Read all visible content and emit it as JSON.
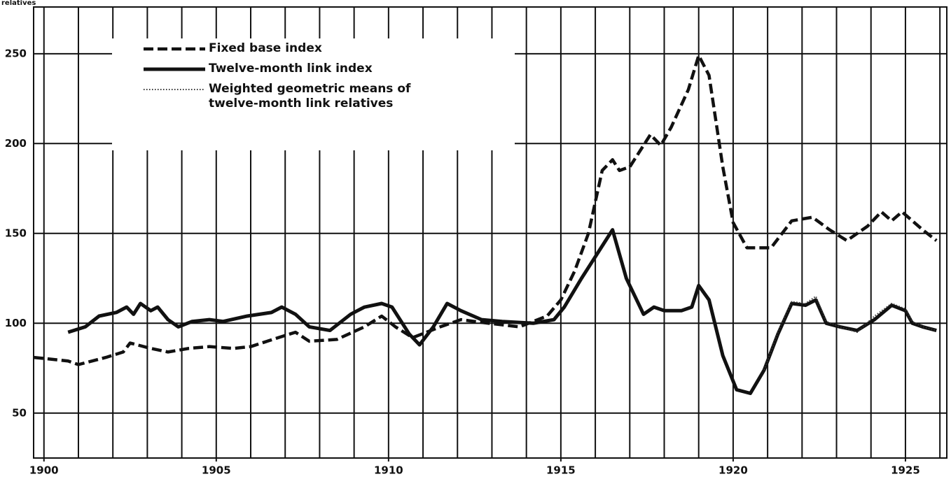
{
  "chart_data": {
    "type": "line",
    "y_label": "relatives",
    "xlim": [
      1899.7,
      1926.2
    ],
    "ylim": [
      25,
      276
    ],
    "xticks": [
      1900,
      1905,
      1910,
      1915,
      1920,
      1925
    ],
    "yticks": [
      50,
      100,
      150,
      200,
      250
    ],
    "x_grid_step": 1,
    "grid": true,
    "legend": "upper left",
    "series": [
      {
        "name": "Fixed base index",
        "color": "#111111",
        "style": "dashed",
        "x": [
          1899.7,
          1900.7,
          1901.0,
          1901.8,
          1902.3,
          1902.5,
          1903.1,
          1903.6,
          1904.2,
          1904.8,
          1905.5,
          1906.0,
          1906.8,
          1907.3,
          1907.7,
          1908.5,
          1909.3,
          1909.8,
          1910.2,
          1910.7,
          1911.5,
          1912.1,
          1912.9,
          1913.8,
          1914.6,
          1915.0,
          1915.4,
          1915.8,
          1916.2,
          1916.5,
          1916.7,
          1917.0,
          1917.6,
          1917.9,
          1918.2,
          1918.7,
          1919.0,
          1919.3,
          1919.7,
          1920.0,
          1920.4,
          1921.1,
          1921.7,
          1922.3,
          1922.8,
          1923.3,
          1923.9,
          1924.3,
          1924.6,
          1924.9,
          1925.5,
          1925.9
        ],
        "values": [
          81,
          79,
          77,
          81,
          84,
          89,
          86,
          84,
          86,
          87,
          86,
          87,
          92,
          95,
          90,
          91,
          98,
          104,
          98,
          92,
          98,
          102,
          100,
          98,
          104,
          113,
          129,
          150,
          185,
          191,
          185,
          187,
          205,
          199,
          209,
          230,
          249,
          238,
          187,
          156,
          142,
          142,
          157,
          159,
          152,
          146,
          154,
          162,
          157,
          162,
          152,
          146
        ]
      },
      {
        "name": "Twelve-month link index",
        "color": "#111111",
        "style": "solid",
        "x": [
          1900.7,
          1901.2,
          1901.6,
          1902.1,
          1902.4,
          1902.6,
          1902.8,
          1903.1,
          1903.3,
          1903.6,
          1903.9,
          1904.3,
          1904.8,
          1905.2,
          1905.9,
          1906.6,
          1906.9,
          1907.3,
          1907.7,
          1908.3,
          1908.9,
          1909.3,
          1909.8,
          1910.1,
          1910.6,
          1910.9,
          1911.3,
          1911.7,
          1912.1,
          1912.7,
          1913.3,
          1914.2,
          1914.8,
          1915.1,
          1915.6,
          1916.1,
          1916.5,
          1916.9,
          1917.4,
          1917.7,
          1918.0,
          1918.5,
          1918.8,
          1919.0,
          1919.3,
          1919.7,
          1920.1,
          1920.5,
          1920.9,
          1921.3,
          1921.7,
          1922.1,
          1922.4,
          1922.7,
          1923.1,
          1923.6,
          1924.1,
          1924.6,
          1925.0,
          1925.2,
          1925.5,
          1925.9
        ],
        "values": [
          95,
          98,
          104,
          106,
          109,
          105,
          111,
          107,
          109,
          102,
          98,
          101,
          102,
          101,
          104,
          106,
          109,
          105,
          98,
          96,
          105,
          109,
          111,
          109,
          94,
          88,
          98,
          111,
          107,
          102,
          101,
          100,
          102,
          109,
          125,
          140,
          152,
          125,
          105,
          109,
          107,
          107,
          109,
          121,
          113,
          82,
          63,
          61,
          74,
          94,
          111,
          110,
          113,
          100,
          98,
          96,
          102,
          110,
          107,
          100,
          98,
          96
        ]
      },
      {
        "name": "Weighted geometric means of twelve-month link relatives",
        "color": "#333333",
        "style": "dotted",
        "x": [
          1920.9,
          1921.3,
          1921.7,
          1922.1,
          1922.4,
          1922.7,
          1923.1,
          1923.6,
          1924.1,
          1924.6,
          1925.0,
          1925.2,
          1925.5,
          1925.9
        ],
        "values": [
          74,
          95,
          112,
          111,
          115,
          101,
          98,
          95,
          104,
          111,
          108,
          101,
          98,
          96
        ]
      }
    ]
  }
}
